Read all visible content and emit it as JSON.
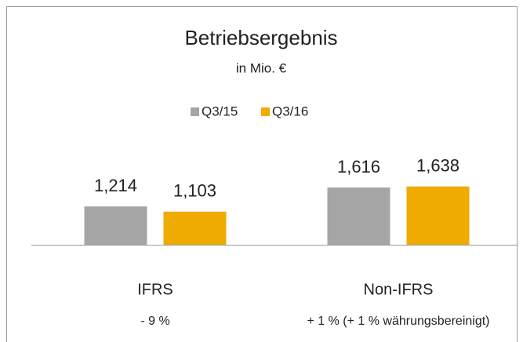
{
  "chart_data": {
    "type": "bar",
    "title": "Betriebsergebnis",
    "subtitle": "in Mio. €",
    "categories": [
      "IFRS",
      "Non-IFRS"
    ],
    "category_notes": [
      "- 9 %",
      "+ 1 % (+ 1 % währungsbereinigt)"
    ],
    "series": [
      {
        "name": "Q3/15",
        "color": "#a5a5a5",
        "values": [
          1214,
          1616
        ],
        "value_labels": [
          "1,214",
          "1,616"
        ]
      },
      {
        "name": "Q3/16",
        "color": "#f0ab00",
        "values": [
          1103,
          1638
        ],
        "value_labels": [
          "1,103",
          "1,638"
        ]
      }
    ],
    "ylim": [
      400,
      2000
    ],
    "legend": "top"
  }
}
